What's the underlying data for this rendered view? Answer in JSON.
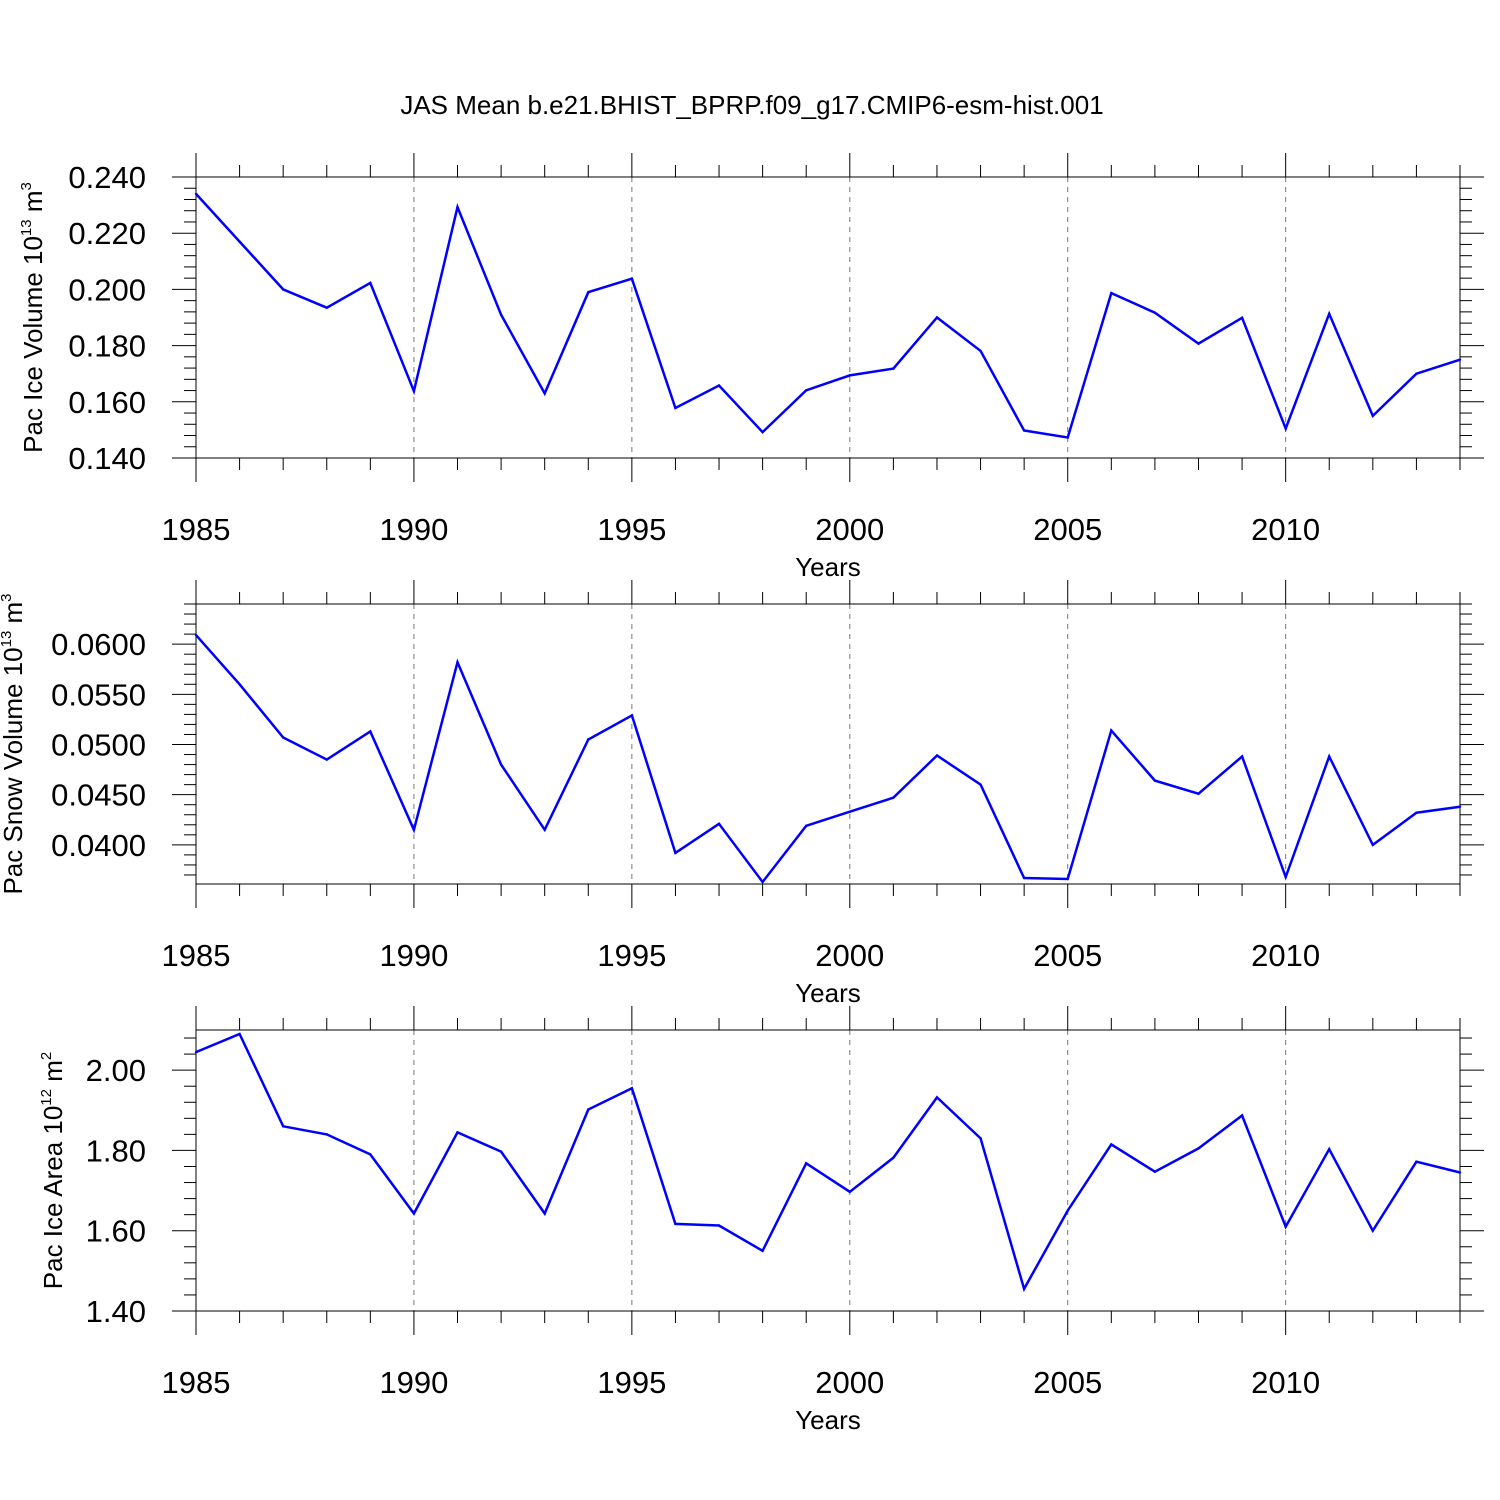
{
  "chart_data": {
    "type": "line",
    "title": "JAS Mean b.e21.BHIST_BPRP.f09_g17.CMIP6-esm-hist.001",
    "series_color": "#0000ff",
    "x": [
      1985,
      1986,
      1987,
      1988,
      1989,
      1990,
      1991,
      1992,
      1993,
      1994,
      1995,
      1996,
      1997,
      1998,
      1999,
      2000,
      2001,
      2002,
      2003,
      2004,
      2005,
      2006,
      2007,
      2008,
      2009,
      2010,
      2011,
      2012,
      2013,
      2014
    ],
    "xlim": [
      1985,
      2014
    ],
    "xticks": [
      "1985",
      "1990",
      "1995",
      "2000",
      "2005",
      "2010"
    ],
    "panels": [
      {
        "xlabel": "Years",
        "ylabel_text": "Pac Ice Volume 10",
        "ylabel_exp": "13",
        "ylabel_unit": "m",
        "ylabel_unit_exp": "3",
        "ylim": [
          0.14,
          0.24
        ],
        "yticks": [
          "0.140",
          "0.160",
          "0.180",
          "0.200",
          "0.220",
          "0.240"
        ],
        "values": [
          0.234,
          0.217,
          0.2,
          0.1935,
          0.2023,
          0.1638,
          0.2293,
          0.191,
          0.163,
          0.199,
          0.2038,
          0.1578,
          0.1658,
          0.1492,
          0.1641,
          0.1694,
          0.1718,
          0.19,
          0.1781,
          0.1498,
          0.1473,
          0.1987,
          0.1917,
          0.1807,
          0.1899,
          0.1505,
          0.1913,
          0.155,
          0.17,
          0.175
        ]
      },
      {
        "xlabel": "Years",
        "ylabel_text": "Pac Snow Volume 10",
        "ylabel_exp": "13",
        "ylabel_unit": "m",
        "ylabel_unit_exp": "3",
        "ylim": [
          0.0361,
          0.064
        ],
        "yticks": [
          "0.0400",
          "0.0450",
          "0.0500",
          "0.0550",
          "0.0600"
        ],
        "values": [
          0.0609,
          0.056,
          0.0507,
          0.0485,
          0.0513,
          0.0415,
          0.0582,
          0.048,
          0.0415,
          0.0505,
          0.0529,
          0.0392,
          0.0421,
          0.0363,
          0.0419,
          0.0433,
          0.0447,
          0.0489,
          0.046,
          0.0367,
          0.0366,
          0.0514,
          0.0464,
          0.0451,
          0.0488,
          0.0368,
          0.0488,
          0.04,
          0.0432,
          0.0438
        ]
      },
      {
        "xlabel": "Years",
        "ylabel_text": "Pac Ice Area 10",
        "ylabel_exp": "12",
        "ylabel_unit": "m",
        "ylabel_unit_exp": "2",
        "ylim": [
          1.4,
          2.1
        ],
        "yticks": [
          "1.40",
          "1.60",
          "1.80",
          "2.00"
        ],
        "values": [
          2.045,
          2.09,
          1.86,
          1.84,
          1.79,
          1.643,
          1.845,
          1.797,
          1.643,
          1.902,
          1.955,
          1.617,
          1.613,
          1.55,
          1.768,
          1.697,
          1.782,
          1.932,
          1.83,
          1.455,
          1.65,
          1.815,
          1.747,
          1.805,
          1.887,
          1.61,
          1.803,
          1.6,
          1.772,
          1.745
        ]
      }
    ]
  }
}
